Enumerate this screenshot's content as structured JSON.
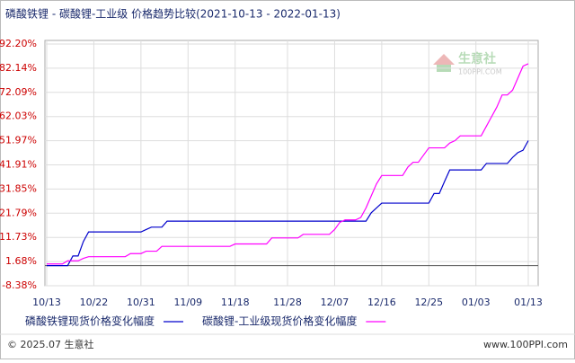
{
  "chart_data": {
    "type": "line",
    "title": "磷酸铁锂 - 碳酸锂-工业级 价格趋势比较(2021-10-13 - 2022-01-13)",
    "watermark": [
      "生意社",
      "100PPI.COM"
    ],
    "footer_left": "© 2025.07 生意社",
    "footer_right": "www.100PPI.com",
    "categories": [
      "10/13",
      null,
      null,
      null,
      null,
      null,
      null,
      null,
      null,
      "10/22",
      null,
      null,
      null,
      null,
      null,
      null,
      null,
      null,
      "10/31",
      null,
      null,
      null,
      null,
      null,
      null,
      null,
      null,
      "11/09",
      null,
      null,
      null,
      null,
      null,
      null,
      null,
      null,
      "11/18",
      null,
      null,
      null,
      null,
      null,
      null,
      null,
      null,
      null,
      "11/28",
      null,
      null,
      null,
      null,
      null,
      null,
      null,
      null,
      "12/07",
      null,
      null,
      null,
      null,
      null,
      null,
      null,
      null,
      "12/16",
      null,
      null,
      null,
      null,
      null,
      null,
      null,
      null,
      "12/25",
      null,
      null,
      null,
      null,
      null,
      null,
      null,
      null,
      "01/03",
      null,
      null,
      null,
      null,
      null,
      null,
      null,
      null,
      null,
      "01/13"
    ],
    "series": [
      {
        "name": "磷酸铁锂现货价格变化幅度",
        "color": "#0000cc",
        "values": [
          0,
          0,
          0,
          0,
          0,
          4,
          4,
          10,
          14,
          14,
          14,
          14,
          14,
          14,
          14,
          14,
          14,
          14,
          14,
          15,
          16,
          16,
          16,
          18.5,
          18.5,
          18.5,
          18.5,
          18.5,
          18.5,
          18.5,
          18.5,
          18.5,
          18.5,
          18.5,
          18.5,
          18.5,
          18.5,
          18.5,
          18.5,
          18.5,
          18.5,
          18.5,
          18.5,
          18.5,
          18.5,
          18.5,
          18.5,
          18.5,
          18.5,
          18.5,
          18.5,
          18.5,
          18.5,
          18.5,
          18.5,
          18.5,
          18.5,
          18.5,
          18.5,
          18.5,
          18.5,
          18.5,
          22,
          24,
          26,
          26,
          26,
          26,
          26,
          26,
          26,
          26,
          26,
          26,
          30,
          30,
          35,
          39.8,
          39.8,
          39.8,
          39.8,
          39.8,
          39.8,
          39.8,
          42.5,
          42.5,
          42.5,
          42.5,
          42.5,
          45,
          47,
          48,
          52
        ]
      },
      {
        "name": "碳酸锂-工业级现货价格变化幅度",
        "color": "#ff00ff",
        "values": [
          0.7,
          0.7,
          0.7,
          0.7,
          2,
          2,
          2,
          3,
          3.7,
          3.7,
          3.7,
          3.7,
          3.7,
          3.7,
          3.7,
          3.7,
          5,
          5,
          5,
          6,
          6,
          6,
          8,
          8,
          8,
          8,
          8,
          8,
          8,
          8,
          8,
          8,
          8,
          8,
          8,
          8,
          9,
          9,
          9,
          9,
          9,
          9,
          9,
          11.5,
          11.5,
          11.5,
          11.5,
          11.5,
          11.5,
          13,
          13,
          13,
          13,
          13,
          13,
          15,
          18,
          19,
          19,
          19,
          20,
          24,
          29,
          34,
          37.5,
          37.5,
          37.5,
          37.5,
          37.5,
          41,
          43,
          43,
          46,
          49,
          49,
          49,
          49,
          51,
          52,
          54,
          54,
          54,
          54,
          54,
          58,
          62,
          66,
          71,
          71,
          73,
          78,
          83,
          84
        ]
      }
    ],
    "ylim": [
      -8.38,
      92.2
    ],
    "yticks": [
      {
        "value": 92.2,
        "label": "92.20%"
      },
      {
        "value": 82.14,
        "label": "82.14%"
      },
      {
        "value": 72.09,
        "label": "72.09%"
      },
      {
        "value": 62.03,
        "label": "62.03%"
      },
      {
        "value": 51.97,
        "label": "51.97%"
      },
      {
        "value": 41.91,
        "label": "41.91%"
      },
      {
        "value": 31.85,
        "label": "31.85%"
      },
      {
        "value": 21.79,
        "label": "21.79%"
      },
      {
        "value": 11.73,
        "label": "11.73%"
      },
      {
        "value": 1.68,
        "label": "1.68%"
      },
      {
        "value": -8.38,
        "label": "-8.38%"
      }
    ],
    "grid": true
  }
}
